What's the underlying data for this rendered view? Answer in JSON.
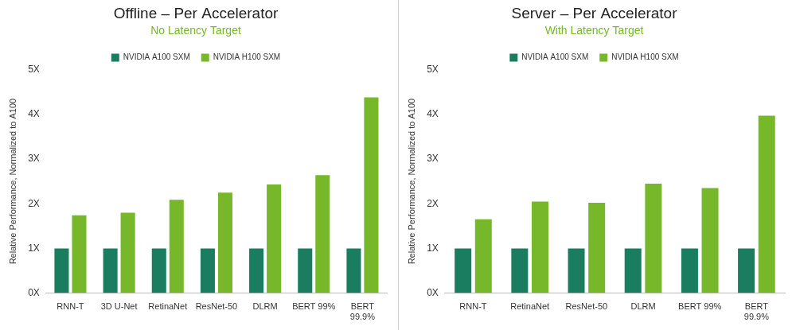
{
  "chart_data": [
    {
      "type": "bar",
      "title": "Offline – Per Accelerator",
      "subtitle": "No Latency Target",
      "y_label": "Relative Performance, Normalized to A100",
      "categories": [
        "RNN-T",
        "3D U-Net",
        "RetinaNet",
        "ResNet-50",
        "DLRM",
        "BERT 99%",
        "BERT 99.9%"
      ],
      "series": [
        {
          "name": "NVIDIA A100 SXM",
          "color": "#1b7d5f",
          "values": [
            1,
            1,
            1,
            1,
            1,
            1,
            1
          ]
        },
        {
          "name": "NVIDIA H100 SXM",
          "color": "#76b82a",
          "values": [
            1.74,
            1.8,
            2.09,
            2.25,
            2.43,
            2.64,
            4.38
          ]
        }
      ],
      "ylim": [
        0,
        5
      ],
      "yticks": [
        {
          "value": 0,
          "label": "0X"
        },
        {
          "value": 1,
          "label": "1X"
        },
        {
          "value": 2,
          "label": "2X"
        },
        {
          "value": 3,
          "label": "3X"
        },
        {
          "value": 4,
          "label": "4X"
        },
        {
          "value": 5,
          "label": "5X"
        }
      ],
      "grid": false,
      "legend": "top"
    },
    {
      "type": "bar",
      "title": "Server – Per Accelerator",
      "subtitle": "With Latency Target",
      "y_label": "Relative Performance, Normalized to A100",
      "categories": [
        "RNN-T",
        "RetinaNet",
        "ResNet-50",
        "DLRM",
        "BERT 99%",
        "BERT 99.9%"
      ],
      "series": [
        {
          "name": "NVIDIA A100 SXM",
          "color": "#1b7d5f",
          "values": [
            1,
            1,
            1,
            1,
            1,
            1
          ]
        },
        {
          "name": "NVIDIA H100 SXM",
          "color": "#76b82a",
          "values": [
            1.65,
            2.05,
            2.02,
            2.45,
            2.35,
            3.97
          ]
        }
      ],
      "ylim": [
        0,
        5
      ],
      "yticks": [
        {
          "value": 0,
          "label": "0X"
        },
        {
          "value": 1,
          "label": "1X"
        },
        {
          "value": 2,
          "label": "2X"
        },
        {
          "value": 3,
          "label": "3X"
        },
        {
          "value": 4,
          "label": "4X"
        },
        {
          "value": 5,
          "label": "5X"
        }
      ],
      "grid": false,
      "legend": "top"
    }
  ]
}
